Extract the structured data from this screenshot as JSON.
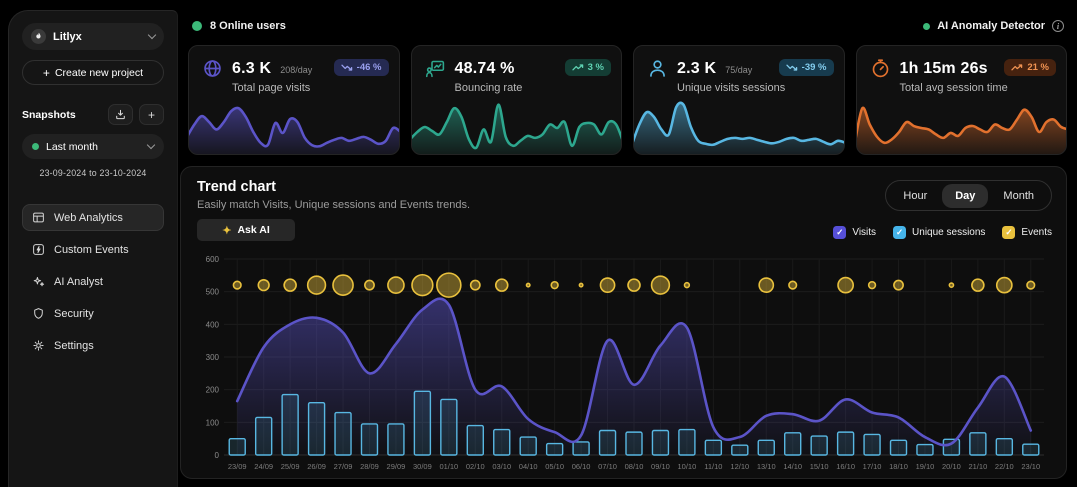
{
  "topbar": {
    "online_users": "8 Online users",
    "anomaly_label": "AI Anomaly Detector"
  },
  "sidebar": {
    "project_name": "Litlyx",
    "create_project_label": "Create new project",
    "snapshots_label": "Snapshots",
    "snapshot_selected": "Last month",
    "snapshot_range": "23-09-2024 to 23-10-2024",
    "nav": [
      {
        "label": "Web Analytics",
        "active": true
      },
      {
        "label": "Custom Events",
        "active": false
      },
      {
        "label": "AI Analyst",
        "active": false
      },
      {
        "label": "Security",
        "active": false
      },
      {
        "label": "Settings",
        "active": false
      }
    ]
  },
  "stat_cards": [
    {
      "value": "6.3 K",
      "per_day": "208/day",
      "label": "Total page visits",
      "badge": "-46 %",
      "trend": "down",
      "color": "#5b54c8",
      "badge_bg": "#252a52",
      "badge_fg": "#9aa0ef"
    },
    {
      "value": "48.74 %",
      "per_day": "",
      "label": "Bouncing rate",
      "badge": "3 %",
      "trend": "up",
      "color": "#2da78e",
      "badge_bg": "#143d34",
      "badge_fg": "#5fd3b3"
    },
    {
      "value": "2.3 K",
      "per_day": "75/day",
      "label": "Unique visits sessions",
      "badge": "-39 %",
      "trend": "down",
      "color": "#58b7e2",
      "badge_bg": "#173b4e",
      "badge_fg": "#83cdee"
    },
    {
      "value": "1h 15m 26s",
      "per_day": "",
      "label": "Total avg session time",
      "badge": "21 %",
      "trend": "up",
      "color": "#e2712e",
      "badge_bg": "#46220f",
      "badge_fg": "#f09352"
    }
  ],
  "trend": {
    "title": "Trend chart",
    "subtitle": "Easily match Visits, Unique sessions and Events trends.",
    "ask_ai": "Ask AI",
    "tabs": [
      {
        "label": "Hour",
        "active": false
      },
      {
        "label": "Day",
        "active": true
      },
      {
        "label": "Month",
        "active": false
      }
    ],
    "legend": [
      {
        "label": "Visits",
        "color": "#564fd8"
      },
      {
        "label": "Unique sessions",
        "color": "#45b4ea"
      },
      {
        "label": "Events",
        "color": "#e9c13d"
      }
    ]
  },
  "icons": {
    "plus": "+",
    "check": "✓",
    "sparkle": "✦",
    "info": "i"
  },
  "chart_data": [
    {
      "name": "trend-chart",
      "type": "mixed",
      "title": "Trend chart",
      "x": [
        "23/09",
        "24/09",
        "25/09",
        "26/09",
        "27/09",
        "28/09",
        "29/09",
        "30/09",
        "01/10",
        "02/10",
        "03/10",
        "04/10",
        "05/10",
        "06/10",
        "07/10",
        "08/10",
        "09/10",
        "10/10",
        "11/10",
        "12/10",
        "13/10",
        "14/10",
        "15/10",
        "16/10",
        "17/10",
        "18/10",
        "19/10",
        "20/10",
        "21/10",
        "22/10",
        "23/10"
      ],
      "ylim": [
        0,
        600
      ],
      "yticks": [
        0,
        100,
        200,
        300,
        400,
        500,
        600
      ],
      "grid": true,
      "legend_position": "top-right",
      "series": [
        {
          "name": "Visits",
          "type": "area-line",
          "color": "#5b54c8",
          "values": [
            165,
            330,
            400,
            420,
            375,
            250,
            340,
            445,
            460,
            200,
            210,
            110,
            70,
            60,
            350,
            215,
            335,
            390,
            85,
            55,
            120,
            125,
            105,
            170,
            130,
            115,
            55,
            35,
            145,
            240,
            75
          ]
        },
        {
          "name": "Unique sessions",
          "type": "bar",
          "color": "#58b7e2",
          "values": [
            50,
            115,
            185,
            160,
            130,
            95,
            95,
            195,
            170,
            90,
            78,
            55,
            35,
            40,
            75,
            70,
            75,
            78,
            45,
            30,
            45,
            68,
            58,
            70,
            63,
            45,
            32,
            48,
            68,
            50,
            33
          ]
        },
        {
          "name": "Events",
          "type": "bubble",
          "color": "#e9c13d",
          "bubble_row_y": 520,
          "values": [
            10,
            20,
            25,
            55,
            70,
            15,
            45,
            75,
            100,
            15,
            25,
            2,
            8,
            2,
            35,
            25,
            55,
            4,
            0,
            0,
            35,
            10,
            0,
            40,
            8,
            15,
            0,
            3,
            25,
            40,
            10
          ]
        }
      ]
    },
    {
      "name": "visits-sparkline",
      "type": "area",
      "color": "#5b54c8",
      "values": [
        30,
        55,
        72,
        60,
        45,
        60,
        82,
        88,
        70,
        40,
        18,
        14,
        58,
        38,
        66,
        60,
        28,
        13,
        11,
        18,
        24,
        28,
        22,
        26,
        30,
        24,
        16,
        22,
        48,
        40
      ]
    },
    {
      "name": "bounce-sparkline",
      "type": "area",
      "color": "#2da78e",
      "values": [
        25,
        40,
        50,
        42,
        35,
        60,
        88,
        70,
        25,
        8,
        45,
        20,
        95,
        30,
        12,
        22,
        32,
        28,
        35,
        55,
        48,
        60,
        12,
        50,
        58,
        55,
        35,
        60,
        55,
        18
      ]
    },
    {
      "name": "sessions-sparkline",
      "type": "area",
      "color": "#58b7e2",
      "values": [
        15,
        55,
        80,
        70,
        45,
        35,
        90,
        95,
        50,
        22,
        16,
        14,
        20,
        26,
        28,
        26,
        28,
        24,
        20,
        17,
        20,
        26,
        28,
        22,
        24,
        26,
        20,
        15,
        22,
        18
      ]
    },
    {
      "name": "time-sparkline",
      "type": "area",
      "color": "#e2712e",
      "values": [
        20,
        88,
        55,
        30,
        18,
        25,
        40,
        60,
        52,
        48,
        45,
        35,
        28,
        38,
        32,
        48,
        52,
        45,
        40,
        55,
        48,
        45,
        65,
        85,
        70,
        40,
        60,
        65,
        50,
        45
      ]
    }
  ]
}
